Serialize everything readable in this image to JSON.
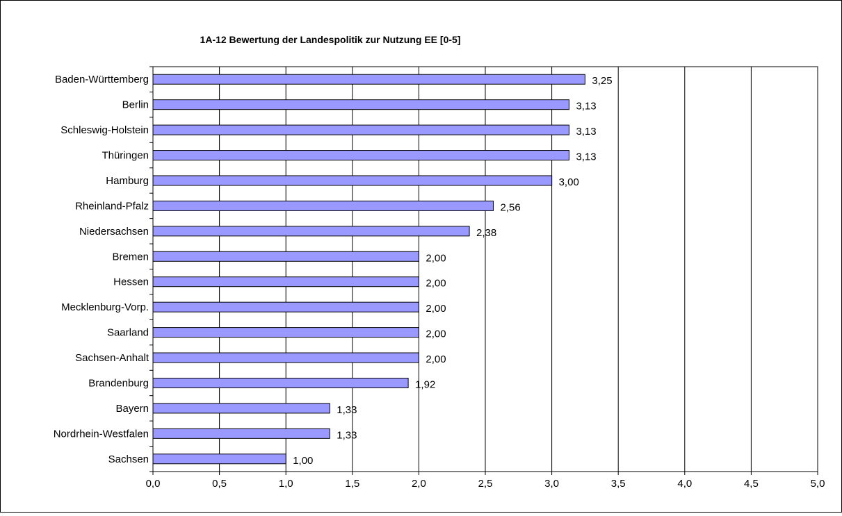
{
  "chart_data": {
    "type": "bar",
    "orientation": "horizontal",
    "title": "1A-12 Bewertung der Landespolitik zur Nutzung EE [0-5]",
    "xlabel": "",
    "ylabel": "",
    "xlim": [
      0,
      5
    ],
    "grid": "vertical",
    "categories": [
      "Baden-Württemberg",
      "Berlin",
      "Schleswig-Holstein",
      "Thüringen",
      "Hamburg",
      "Rheinland-Pfalz",
      "Niedersachsen",
      "Bremen",
      "Hessen",
      "Mecklenburg-Vorp.",
      "Saarland",
      "Sachsen-Anhalt",
      "Brandenburg",
      "Bayern",
      "Nordrhein-Westfalen",
      "Sachsen"
    ],
    "values": [
      3.25,
      3.13,
      3.13,
      3.13,
      3.0,
      2.56,
      2.38,
      2.0,
      2.0,
      2.0,
      2.0,
      2.0,
      1.92,
      1.33,
      1.33,
      1.0
    ],
    "value_labels": [
      "3,25",
      "3,13",
      "3,13",
      "3,13",
      "3,00",
      "2,56",
      "2,38",
      "2,00",
      "2,00",
      "2,00",
      "2,00",
      "2,00",
      "1,92",
      "1,33",
      "1,33",
      "1,00"
    ],
    "ticks": [
      0,
      0.5,
      1,
      1.5,
      2,
      2.5,
      3,
      3.5,
      4,
      4.5,
      5
    ],
    "tick_labels": [
      "0,0",
      "0,5",
      "1,0",
      "1,5",
      "2,0",
      "2,5",
      "3,0",
      "3,5",
      "4,0",
      "4,5",
      "5,0"
    ],
    "colors": {
      "bar_fill": "#9999FF",
      "bar_stroke": "#000000",
      "grid": "#000000",
      "frame": "#000000"
    }
  }
}
